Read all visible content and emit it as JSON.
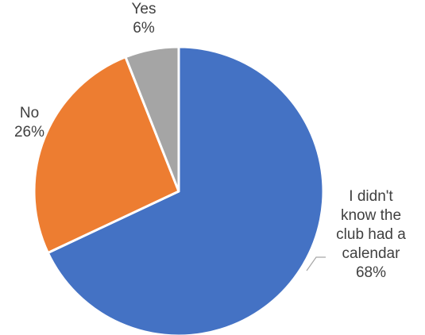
{
  "chart_data": {
    "type": "pie",
    "start_angle_deg": 0,
    "direction": "clockwise",
    "slices": [
      {
        "label_lines": [
          "I didn't",
          "know the",
          "club had a",
          "calendar"
        ],
        "value": 68,
        "value_label": "68%",
        "color": "#4472C4"
      },
      {
        "label_lines": [
          "No"
        ],
        "value": 26,
        "value_label": "26%",
        "color": "#ED7D31"
      },
      {
        "label_lines": [
          "Yes"
        ],
        "value": 6,
        "value_label": "6%",
        "color": "#A5A5A5"
      }
    ],
    "slice_border_color": "#ffffff",
    "leader_line_color": "#A6A6A6",
    "legend": false
  }
}
